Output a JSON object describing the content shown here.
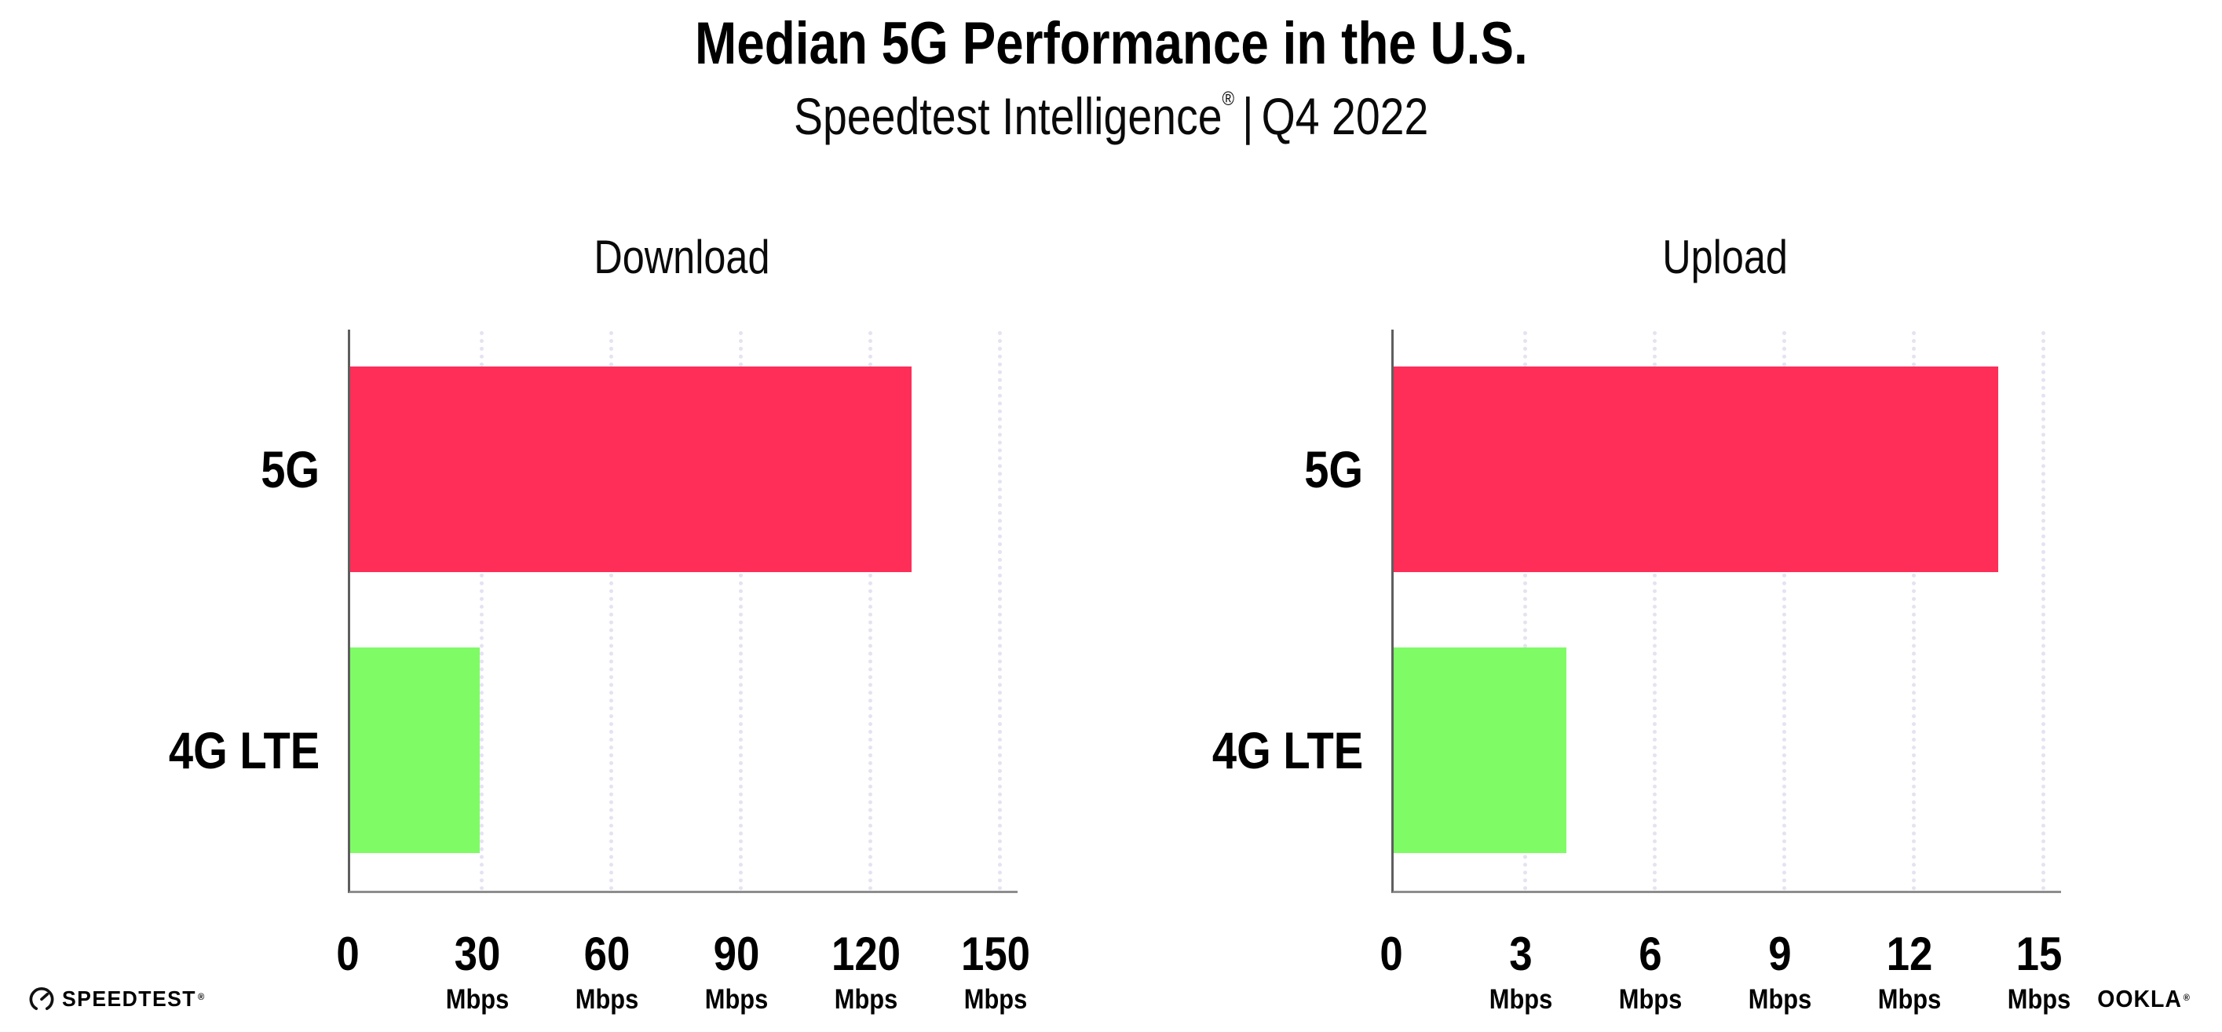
{
  "header": {
    "title": "Median 5G Performance in the U.S.",
    "subtitle_brand": "Speedtest Intelligence",
    "subtitle_reg_mark": "®",
    "subtitle_separator": "|",
    "subtitle_period": "Q4 2022"
  },
  "chart_data": [
    {
      "type": "bar",
      "orientation": "horizontal",
      "title": "Download",
      "categories": [
        "5G",
        "4G LTE"
      ],
      "values": [
        130,
        30
      ],
      "bar_colors": [
        "#ff2e58",
        "#7ffb66"
      ],
      "xlim": [
        0,
        150
      ],
      "xticks": [
        0,
        30,
        60,
        90,
        120,
        150
      ],
      "tick_unit": "Mbps",
      "grid": "dotted-vertical",
      "grid_color": "#e3e3f1"
    },
    {
      "type": "bar",
      "orientation": "horizontal",
      "title": "Upload",
      "categories": [
        "5G",
        "4G LTE"
      ],
      "values": [
        14,
        4
      ],
      "bar_colors": [
        "#ff2e58",
        "#7ffb66"
      ],
      "xlim": [
        0,
        15
      ],
      "xticks": [
        0,
        3,
        6,
        9,
        12,
        15
      ],
      "tick_unit": "Mbps",
      "grid": "dotted-vertical",
      "grid_color": "#e3e3f1"
    }
  ],
  "footer": {
    "speedtest_logo": {
      "icon": "speedtest-gauge-icon",
      "text": "SPEEDTEST",
      "mark": "®"
    },
    "ookla_logo": {
      "text": "OOKLA",
      "mark": "®"
    }
  },
  "colors": {
    "bar_5g": "#ff2e58",
    "bar_4g_lte": "#7ffb66",
    "gridline": "#e3e3f1",
    "x_axis_line": "#8d8d8d",
    "y_axis_line": "#5e5e5e",
    "text": "#000000"
  }
}
